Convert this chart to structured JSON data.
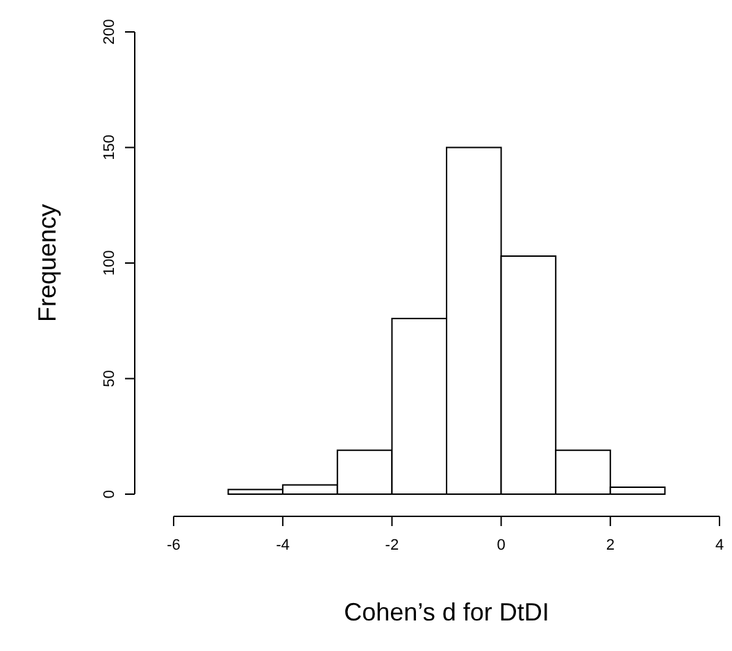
{
  "chart_data": {
    "type": "histogram",
    "xlabel": "Cohen’s d for DtDI",
    "ylabel": "Frequency",
    "bins": [
      -5,
      -4,
      -3,
      -2,
      -1,
      0,
      1,
      2,
      3
    ],
    "values": [
      2,
      4,
      19,
      76,
      150,
      103,
      19,
      3
    ],
    "color": "#ffffff",
    "xlim": [
      -6,
      4
    ],
    "xticks": [
      -6,
      -4,
      -2,
      0,
      2,
      4
    ],
    "ylim": [
      0,
      200
    ],
    "yticks": [
      0,
      50,
      100,
      150,
      200
    ],
    "grid": false
  }
}
